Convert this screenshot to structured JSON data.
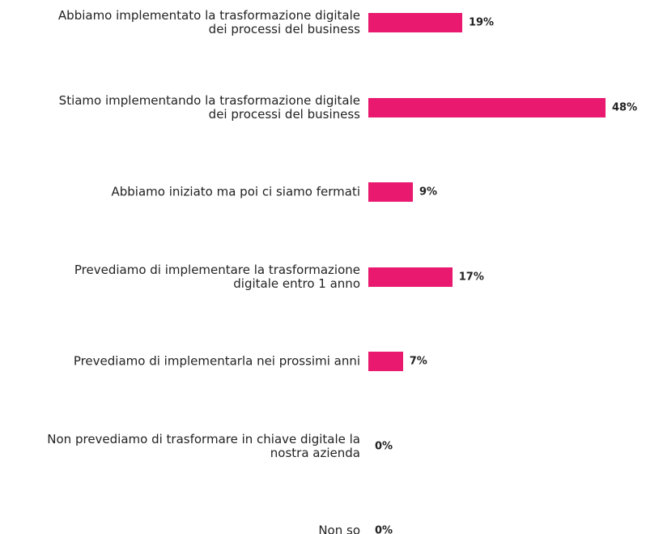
{
  "chart_data": {
    "type": "bar",
    "orientation": "horizontal",
    "color": "#e8196f",
    "categories": [
      "Abbiamo implementato la trasformazione digitale\ndei processi del business",
      "Stiamo implementando la trasformazione digitale\ndei processi del business",
      "Abbiamo iniziato ma poi ci siamo fermati",
      "Prevediamo di implementare la trasformazione\ndigitale entro 1 anno",
      "Prevediamo di implementarla nei prossimi anni",
      "Non prevediamo di trasformare in chiave digitale la\nnostra azienda",
      "Non so"
    ],
    "values": [
      19,
      48,
      9,
      17,
      7,
      0,
      0
    ],
    "value_labels": [
      "19%",
      "48%",
      "9%",
      "17%",
      "7%",
      "0%",
      "0%"
    ]
  }
}
